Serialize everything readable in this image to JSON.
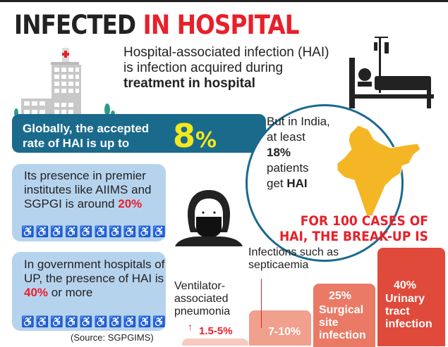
{
  "title": {
    "part1": "INFECTED",
    "part2": "IN HOSPITAL"
  },
  "intro": {
    "text": "Hospital-associated infection (HAI) is infection acquired during",
    "bold": "treatment in hospital"
  },
  "global": {
    "text": "Globally, the accepted rate of HAI is up to",
    "value": "8",
    "unit": "%"
  },
  "india": {
    "line1": "But in India, at least",
    "value": "18%",
    "line2": "patients",
    "line3": "get",
    "bold": "HAI"
  },
  "premier": {
    "text": "Its presence in premier institutes like AIIMS and SGPGI is around",
    "value": "20%",
    "icons_total": 10,
    "icons_red": 2
  },
  "government": {
    "text": "In government hospitals of UP, the presence of HAI is",
    "value": "40%",
    "suffix": "or more",
    "icons_total": 10,
    "icons_red": 4
  },
  "source": "(Source: SGPGIMS)",
  "breakup_title": "FOR 100 CASES OF HAI, THE BREAK-UP IS",
  "breakup": [
    {
      "label": "Ventilator-associated pneumonia",
      "value": "1.5-5%",
      "color": "#f6cabd"
    },
    {
      "label": "Infections such as septicaemia",
      "value": "7-10%",
      "color": "#f0a08c"
    },
    {
      "label": "Surgical site infection",
      "value": "25%",
      "color": "#ea7a65"
    },
    {
      "label": "Urinary tract infection",
      "value": "40%",
      "color": "#e04a3b"
    }
  ],
  "colors": {
    "red": "#e8202a",
    "teal": "#1a6a8c",
    "yellow": "#f3e81c",
    "lightblue": "#b6d3ee",
    "map": "#f5b625"
  }
}
